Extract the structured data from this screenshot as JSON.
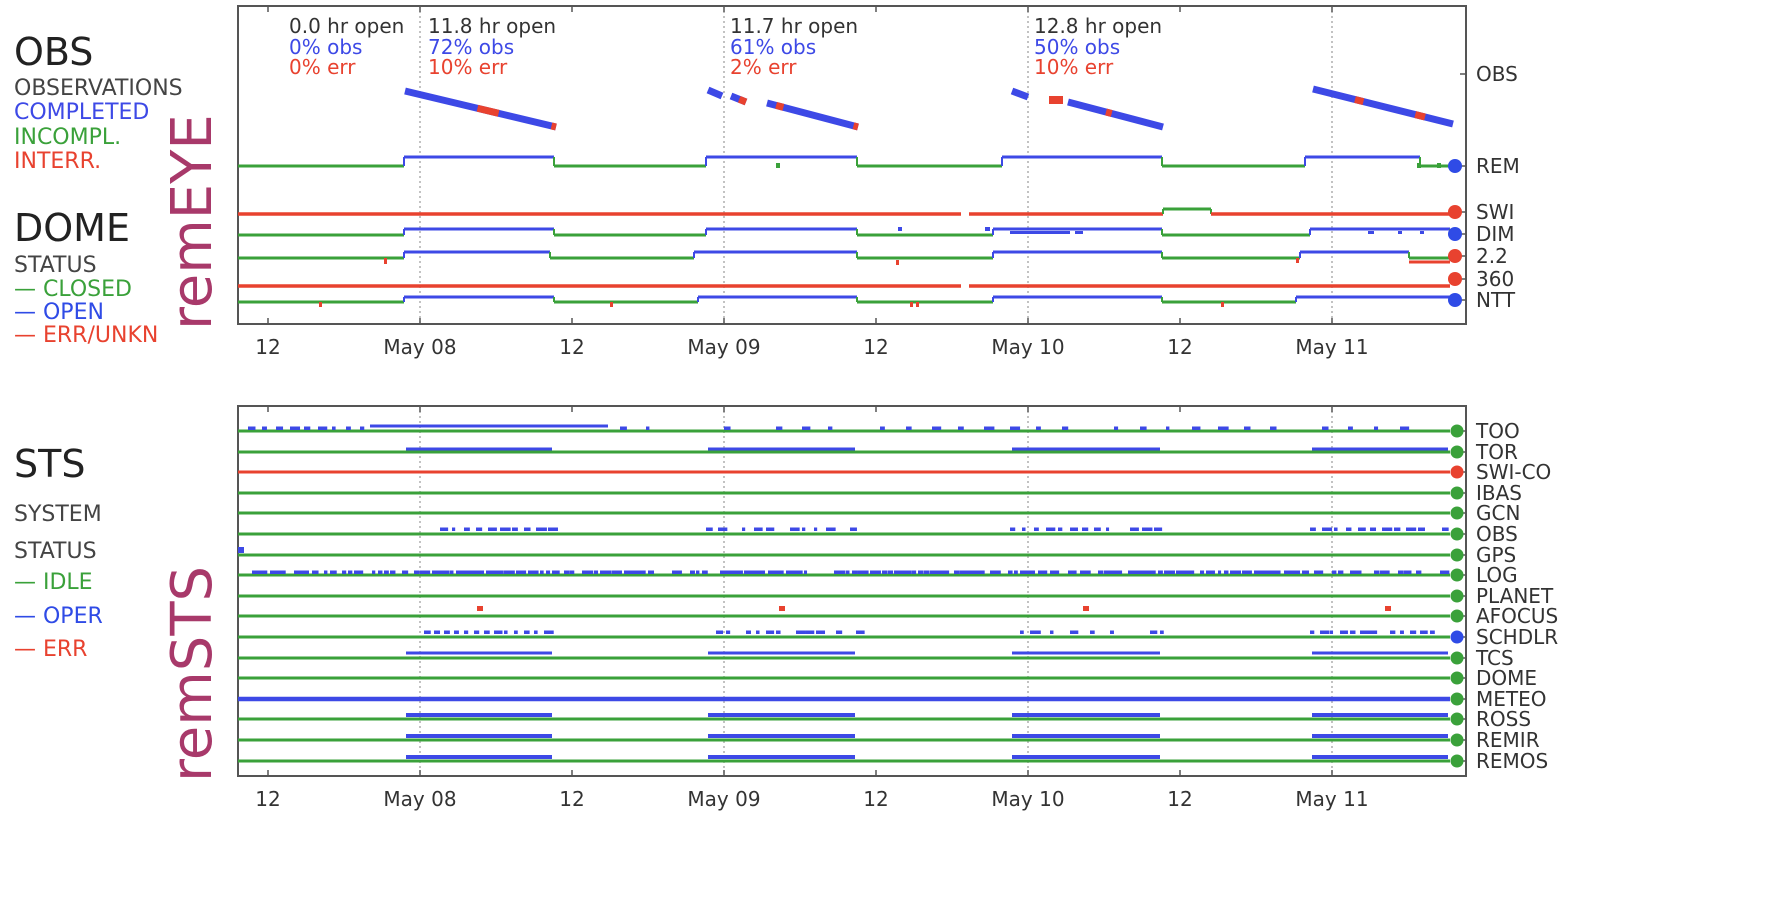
{
  "colors": {
    "completed": "#3d49e6",
    "incomplete": "#3aa13a",
    "interrupted": "#e8422f",
    "closed": "#3aa13a",
    "open": "#2f4be6",
    "error": "#e8422f",
    "text": "#333333",
    "brand": "#a8396a"
  },
  "left_legend": {
    "obs": {
      "title": "OBS",
      "line1": "OBSERVATIONS",
      "line2": "COMPLETED",
      "line3": "INCOMPL.",
      "line4": "INTERR."
    },
    "dome": {
      "title": "DOME",
      "line1": "STATUS",
      "line2": "— CLOSED",
      "line3": "— OPEN",
      "line4": "— ERR/UNKN"
    },
    "sts": {
      "title": "STS",
      "line1": "SYSTEM",
      "line2": "STATUS",
      "line3": "— IDLE",
      "line4": "— OPER",
      "line5": "— ERR"
    },
    "brand_top": "remEYE",
    "brand_bottom": "remSTS"
  },
  "chart_data": [
    {
      "type": "timeline",
      "x_tick_labels": [
        "12",
        "May 08",
        "12",
        "May 09",
        "12",
        "May 10",
        "12",
        "May 11"
      ],
      "x_range_hours": [
        -14,
        70
      ],
      "x_ticks_hours": [
        -12,
        0,
        12,
        24,
        36,
        48,
        60,
        72
      ],
      "row_labels": [
        "OBS",
        "REM",
        "SWI",
        "DIM",
        "2.2",
        "360",
        "NTT"
      ],
      "nights": [
        {
          "open": "0.0 hr open",
          "obs": "0% obs",
          "err": "0% err"
        },
        {
          "open": "11.8 hr open",
          "obs": "72% obs",
          "err": "10% err"
        },
        {
          "open": "11.7 hr open",
          "obs": "61% obs",
          "err": "2% err"
        },
        {
          "open": "12.8 hr open",
          "obs": "50% obs",
          "err": "10% err"
        }
      ],
      "end_status": [
        "",
        "open",
        "error",
        "open",
        "error",
        "error",
        "open"
      ]
    },
    {
      "type": "timeline",
      "x_tick_labels": [
        "12",
        "May 08",
        "12",
        "May 09",
        "12",
        "May 10",
        "12",
        "May 11"
      ],
      "row_labels": [
        "TOO",
        "TOR",
        "SWI-CO",
        "IBAS",
        "GCN",
        "OBS",
        "GPS",
        "LOG",
        "PLANET",
        "AFOCUS",
        "SCHDLR",
        "TCS",
        "DOME",
        "METEO",
        "ROSS",
        "REMIR",
        "REMOS"
      ],
      "end_status": [
        "idle",
        "idle",
        "error",
        "idle",
        "idle",
        "idle",
        "idle",
        "idle",
        "idle",
        "idle",
        "oper",
        "idle",
        "idle",
        "idle",
        "idle",
        "idle",
        "idle"
      ]
    }
  ]
}
